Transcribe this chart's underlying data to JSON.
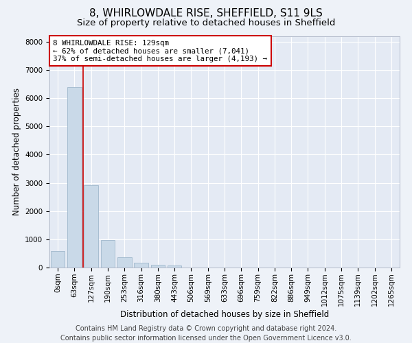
{
  "title": "8, WHIRLOWDALE RISE, SHEFFIELD, S11 9LS",
  "subtitle": "Size of property relative to detached houses in Sheffield",
  "xlabel": "Distribution of detached houses by size in Sheffield",
  "ylabel": "Number of detached properties",
  "footer_line1": "Contains HM Land Registry data © Crown copyright and database right 2024.",
  "footer_line2": "Contains public sector information licensed under the Open Government Licence v3.0.",
  "bar_labels": [
    "0sqm",
    "63sqm",
    "127sqm",
    "190sqm",
    "253sqm",
    "316sqm",
    "380sqm",
    "443sqm",
    "506sqm",
    "569sqm",
    "633sqm",
    "696sqm",
    "759sqm",
    "822sqm",
    "886sqm",
    "949sqm",
    "1012sqm",
    "1075sqm",
    "1139sqm",
    "1202sqm",
    "1265sqm"
  ],
  "bar_values": [
    580,
    6400,
    2920,
    970,
    360,
    160,
    95,
    65,
    0,
    0,
    0,
    0,
    0,
    0,
    0,
    0,
    0,
    0,
    0,
    0,
    0
  ],
  "bar_color": "#c9d9e8",
  "bar_edge_color": "#a0b8cc",
  "marker_line_color": "#cc0000",
  "annotation_text": "8 WHIRLOWDALE RISE: 129sqm\n← 62% of detached houses are smaller (7,041)\n37% of semi-detached houses are larger (4,193) →",
  "annotation_box_color": "#ffffff",
  "annotation_box_edge": "#cc0000",
  "ylim": [
    0,
    8200
  ],
  "yticks": [
    0,
    1000,
    2000,
    3000,
    4000,
    5000,
    6000,
    7000,
    8000
  ],
  "background_color": "#eef2f8",
  "plot_background": "#e4eaf4",
  "grid_color": "#ffffff",
  "title_fontsize": 11,
  "subtitle_fontsize": 9.5,
  "axis_label_fontsize": 8.5,
  "tick_fontsize": 7.5,
  "footer_fontsize": 7
}
